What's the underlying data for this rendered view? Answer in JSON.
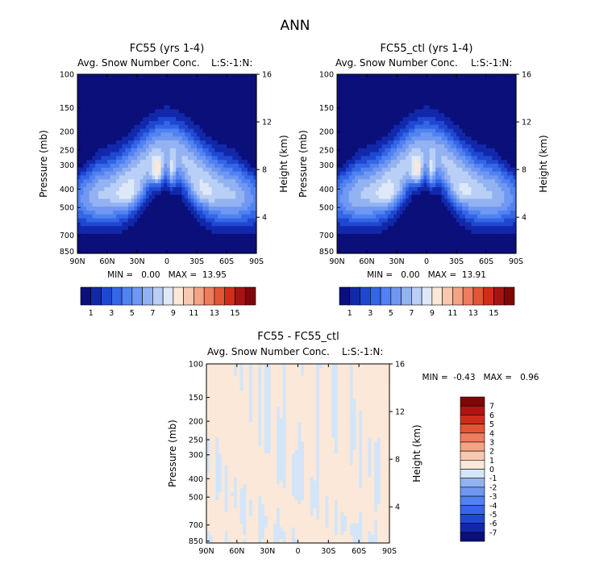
{
  "figure_title": "ANN",
  "colors": {
    "abs_scale": [
      "#0a0f7a",
      "#1228aa",
      "#1f48d2",
      "#3566e6",
      "#5082f2",
      "#7098f2",
      "#93b2f2",
      "#b9cff6",
      "#dfe8f8",
      "#fbe8d9",
      "#f8c8b0",
      "#f4a484",
      "#ee7d5e",
      "#e25636",
      "#cf2d1c",
      "#a81312",
      "#7e0707"
    ],
    "diff_scale": [
      "#0a0f7a",
      "#1228aa",
      "#1f48d2",
      "#3566e6",
      "#5082f2",
      "#7098f2",
      "#93b2f2",
      "#d3e5f8",
      "#fbe8d9",
      "#f8c8b0",
      "#f4a484",
      "#ee7d5e",
      "#e25636",
      "#cf2d1c",
      "#b01414",
      "#7e0707"
    ]
  },
  "panels": [
    {
      "title": "FC55 (yrs 1-4)",
      "subtitle": "Avg. Snow Number Conc.",
      "level_tag": "L:S:-1:N:",
      "min_max": "MIN =   0.00   MAX =  13.95",
      "colorbar_labels": [
        "1",
        "3",
        "5",
        "7",
        "9",
        "11",
        "13",
        "15"
      ]
    },
    {
      "title": "FC55_ctl (yrs 1-4)",
      "subtitle": "Avg. Snow Number Conc.",
      "level_tag": "L:S:-1:N:",
      "min_max": "MIN =   0.00   MAX =  13.91",
      "colorbar_labels": [
        "1",
        "3",
        "5",
        "7",
        "9",
        "11",
        "13",
        "15"
      ]
    },
    {
      "title": "FC55 - FC55_ctl",
      "subtitle": "Avg. Snow Number Conc.",
      "level_tag": "L:S:-1:N:",
      "min_max": "MIN =  -0.43   MAX =   0.96",
      "colorbar_labels": [
        "7",
        "6",
        "5",
        "4",
        "3",
        "2",
        "1",
        "0",
        "-1",
        "-2",
        "-3",
        "-4",
        "-5",
        "-6",
        "-7"
      ]
    }
  ],
  "chart_data": [
    {
      "type": "heatmap",
      "title": "FC55 (yrs 1-4)",
      "subtitle": "Avg. Snow Number Conc.",
      "xlabel": "",
      "ylabel": "Pressure (mb)",
      "y2label": "Height (km)",
      "x_ticks": [
        "90N",
        "60N",
        "30N",
        "0",
        "30S",
        "60S",
        "90S"
      ],
      "y_ticks": [
        "100",
        "150",
        "200",
        "250",
        "300",
        "400",
        "500",
        "700",
        "850"
      ],
      "y2_ticks": [
        "16",
        "12",
        "8",
        "4"
      ],
      "x_range": [
        "90N",
        "90S"
      ],
      "y_range": [
        100,
        850
      ],
      "y_scale": "log",
      "levels": [
        1,
        2,
        3,
        4,
        5,
        6,
        7,
        8,
        9,
        10,
        11,
        12,
        13,
        14,
        15
      ],
      "min": 0.0,
      "max": 13.95
    },
    {
      "type": "heatmap",
      "title": "FC55_ctl (yrs 1-4)",
      "subtitle": "Avg. Snow Number Conc.",
      "xlabel": "",
      "ylabel": "Pressure (mb)",
      "y2label": "Height (km)",
      "x_ticks": [
        "90N",
        "60N",
        "30N",
        "0",
        "30S",
        "60S",
        "90S"
      ],
      "y_ticks": [
        "100",
        "150",
        "200",
        "250",
        "300",
        "400",
        "500",
        "700",
        "850"
      ],
      "y2_ticks": [
        "16",
        "12",
        "8",
        "4"
      ],
      "x_range": [
        "90N",
        "90S"
      ],
      "y_range": [
        100,
        850
      ],
      "y_scale": "log",
      "levels": [
        1,
        2,
        3,
        4,
        5,
        6,
        7,
        8,
        9,
        10,
        11,
        12,
        13,
        14,
        15
      ],
      "min": 0.0,
      "max": 13.91
    },
    {
      "type": "heatmap",
      "title": "FC55 - FC55_ctl",
      "subtitle": "Avg. Snow Number Conc.",
      "xlabel": "",
      "ylabel": "Pressure (mb)",
      "y2label": "Height (km)",
      "x_ticks": [
        "90N",
        "60N",
        "30N",
        "0",
        "30S",
        "60S",
        "90S"
      ],
      "y_ticks": [
        "100",
        "150",
        "200",
        "250",
        "300",
        "400",
        "500",
        "700",
        "850"
      ],
      "y2_ticks": [
        "16",
        "12",
        "8",
        "4"
      ],
      "x_range": [
        "90N",
        "90S"
      ],
      "y_range": [
        100,
        850
      ],
      "y_scale": "log",
      "levels": [
        -7,
        -6,
        -5,
        -4,
        -3,
        -2,
        -1,
        0,
        1,
        2,
        3,
        4,
        5,
        6,
        7
      ],
      "min": -0.43,
      "max": 0.96
    }
  ]
}
